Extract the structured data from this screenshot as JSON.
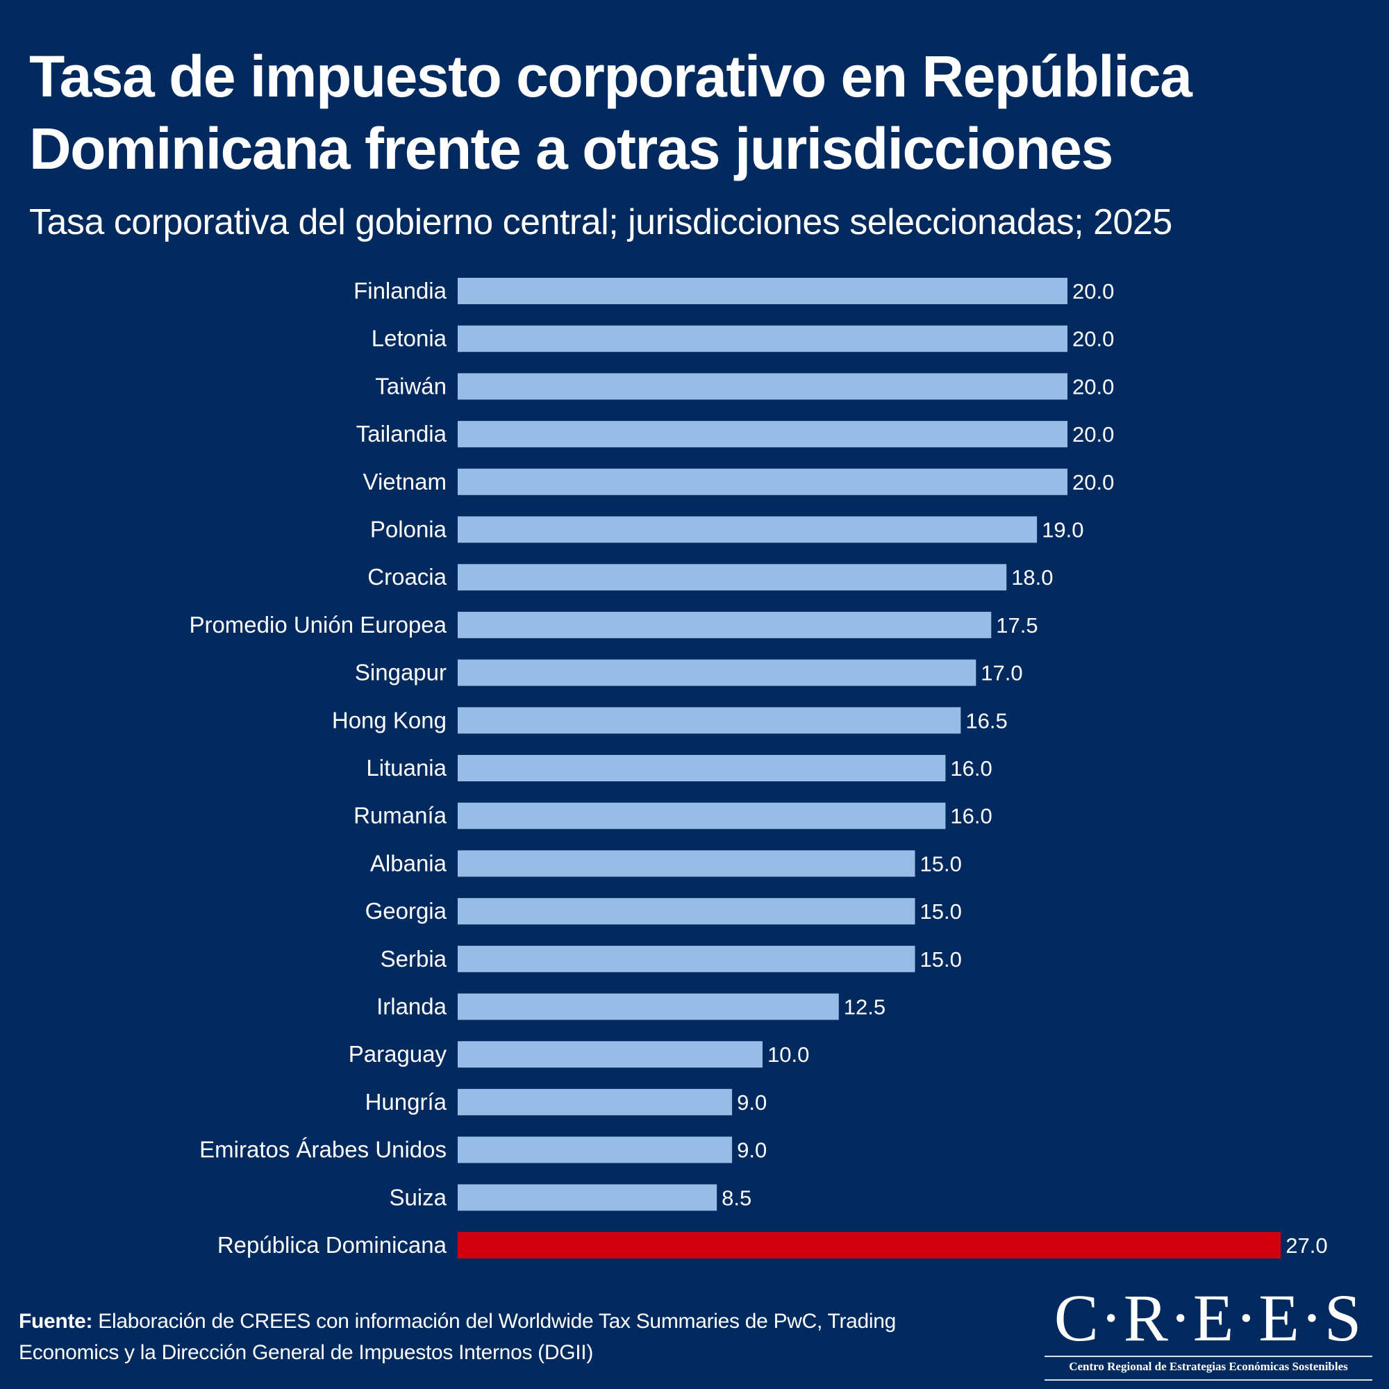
{
  "header": {
    "title": "Tasa de impuesto corporativo en República Dominicana frente a otras jurisdicciones",
    "subtitle": "Tasa corporativa del gobierno central; jurisdicciones seleccionadas; 2025"
  },
  "chart_data": {
    "type": "bar",
    "orientation": "horizontal",
    "title": "Tasa de impuesto corporativo en República Dominicana frente a otras jurisdicciones",
    "subtitle": "Tasa corporativa del gobierno central; jurisdicciones seleccionadas; 2025",
    "xlabel": "",
    "ylabel": "",
    "unit": "%",
    "grid": false,
    "legend": "none",
    "xlim": [
      0,
      27
    ],
    "categories": [
      "Finlandia",
      "Letonia",
      "Taiwán",
      "Tailandia",
      "Vietnam",
      "Polonia",
      "Croacia",
      "Promedio Unión Europea",
      "Singapur",
      "Hong Kong",
      "Lituania",
      "Rumanía",
      "Albania",
      "Georgia",
      "Serbia",
      "Irlanda",
      "Paraguay",
      "Hungría",
      "Emiratos Árabes Unidos",
      "Suiza",
      "República Dominicana"
    ],
    "values": [
      20.0,
      20.0,
      20.0,
      20.0,
      20.0,
      19.0,
      18.0,
      17.5,
      17.0,
      16.5,
      16.0,
      16.0,
      15.0,
      15.0,
      15.0,
      12.5,
      10.0,
      9.0,
      9.0,
      8.5,
      27.0
    ],
    "value_labels": [
      "20.0",
      "20.0",
      "20.0",
      "20.0",
      "20.0",
      "19.0",
      "18.0",
      "17.5",
      "17.0",
      "16.5",
      "16.0",
      "16.0",
      "15.0",
      "15.0",
      "15.0",
      "12.5",
      "10.0",
      "9.0",
      "9.0",
      "8.5",
      "27.0"
    ],
    "highlight": "República Dominicana",
    "colors": {
      "default_bar": "#97bce6",
      "highlight_bar": "#d0000f",
      "background": "#022a5e",
      "text": "#ffffff"
    }
  },
  "footer": {
    "source_label": "Fuente:",
    "source_text": " Elaboración de CREES con información del Worldwide Tax Summaries de PwC, Trading Economics y la Dirección General de Impuestos Internos (DGII)"
  },
  "logo": {
    "mark": "C·R·E·E·S",
    "tagline": "Centro Regional de Estrategias Económicas Sostenibles"
  }
}
